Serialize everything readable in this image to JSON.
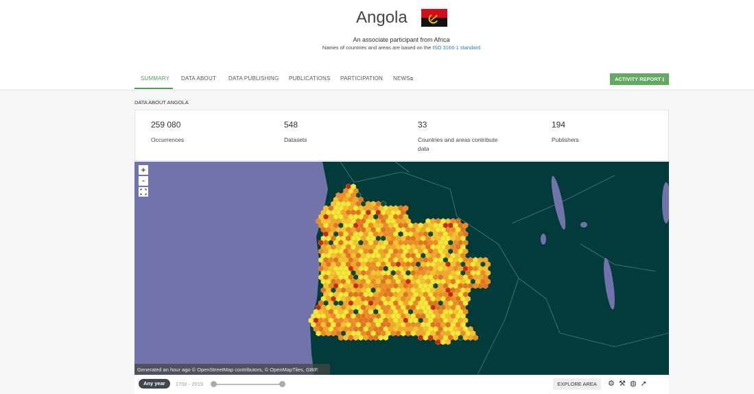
{
  "header": {
    "title": "Angola",
    "subtitle": "An associate participant from Africa",
    "note": "Names of countries and areas are based on the",
    "note_link": "ISO 3166-1 standard"
  },
  "tabs": [
    "SUMMARY",
    "DATA ABOUT",
    "DATA PUBLISHING",
    "PUBLICATIONS",
    "PARTICIPATION",
    "NEWS"
  ],
  "activity_button": "ACTIVITY REPORT",
  "section_title": "DATA ABOUT ANGOLA",
  "stats": [
    {
      "value": "259 080",
      "label": "Occurrences"
    },
    {
      "value": "548",
      "label": "Datasets"
    },
    {
      "value": "33",
      "label": "Countries and areas contribute data"
    },
    {
      "value": "194",
      "label": "Publishers"
    }
  ],
  "map": {
    "zoom_in": "+",
    "zoom_out": "-",
    "attribution": "Generated an hour ago © OpenStreetMap contributors, © OpenMapTiles, GBIF.",
    "year_filter": "Any year",
    "year_range": "1700 - 2019",
    "explore_button": "EXPLORE AREA"
  }
}
